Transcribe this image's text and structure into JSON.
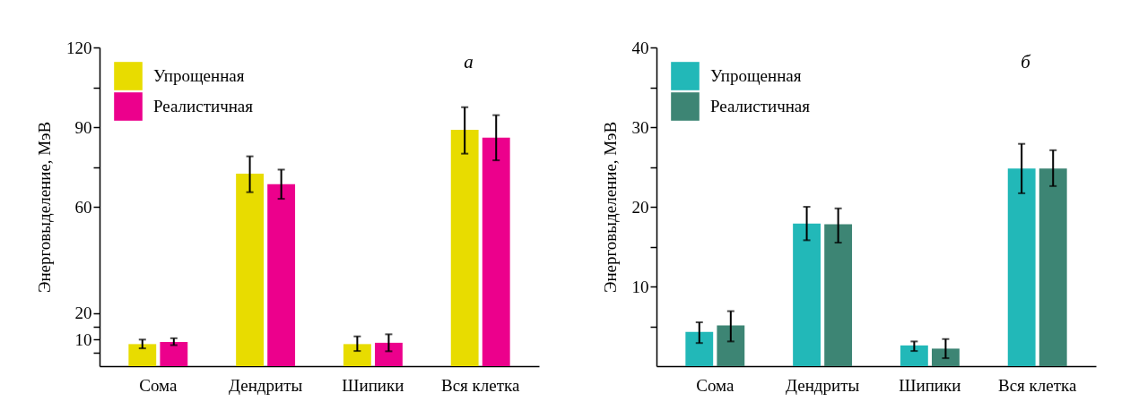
{
  "chart_data": [
    {
      "type": "bar",
      "categories": [
        "Сома",
        "Дендриты",
        "Шипики",
        "Вся клетка"
      ],
      "ylabel": "Энерговыделение, МэВ",
      "annotations": [
        "а"
      ],
      "legend": "top left",
      "grid": false,
      "ylim": [
        0,
        120
      ],
      "yticks": [
        {
          "value": 5,
          "label": null
        },
        10,
        {
          "value": 15,
          "label": null
        },
        20,
        60,
        {
          "value": 75,
          "label": null
        },
        90,
        {
          "value": 105,
          "label": null
        },
        120
      ],
      "series": [
        {
          "name": "Упрощенная",
          "color": "#e8dc00",
          "values": [
            8.3,
            72.5,
            8.3,
            89
          ],
          "errors": [
            [
              6.7,
              10
            ],
            [
              65.5,
              79
            ],
            [
              5.7,
              11.2
            ],
            [
              80,
              97.5
            ]
          ]
        },
        {
          "name": "Реалистичная",
          "color": "#ec008c",
          "values": [
            9.1,
            68.5,
            8.8,
            86
          ],
          "errors": [
            [
              7.9,
              10.5
            ],
            [
              63,
              74
            ],
            [
              5.6,
              12
            ],
            [
              77.5,
              94.5
            ]
          ]
        }
      ]
    },
    {
      "type": "bar",
      "categories": [
        "Сома",
        "Дендриты",
        "Шипики",
        "Вся клетка"
      ],
      "ylabel": "Энерговыделение, МэВ",
      "annotations": [
        "б"
      ],
      "legend": "top left",
      "grid": false,
      "ylim": [
        0,
        40
      ],
      "yticks": [
        {
          "value": 5,
          "label": null
        },
        10,
        {
          "value": 15,
          "label": null
        },
        20,
        {
          "value": 25,
          "label": null
        },
        30,
        {
          "value": 35,
          "label": null
        },
        40
      ],
      "series": [
        {
          "name": "Упрощенная",
          "color": "#22b8b8",
          "values": [
            4.3,
            17.9,
            2.6,
            24.8
          ],
          "errors": [
            [
              2.9,
              5.5
            ],
            [
              15.8,
              20
            ],
            [
              1.9,
              3.1
            ],
            [
              21.7,
              27.9
            ]
          ]
        },
        {
          "name": "Реалистичная",
          "color": "#3d8574",
          "values": [
            5.1,
            17.8,
            2.2,
            24.8
          ],
          "errors": [
            [
              3.1,
              6.9
            ],
            [
              15.5,
              19.8
            ],
            [
              1.0,
              3.4
            ],
            [
              22.6,
              27.1
            ]
          ]
        }
      ]
    }
  ]
}
